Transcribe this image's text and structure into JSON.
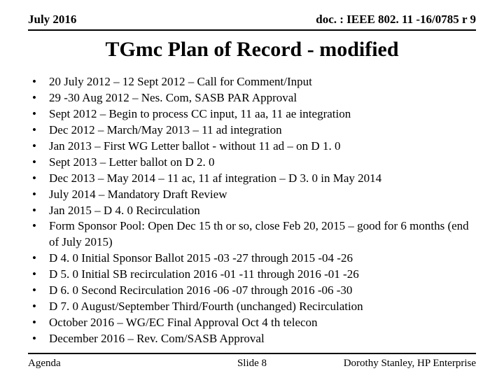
{
  "colors": {
    "background": "#ffffff",
    "text": "#000000",
    "rule": "#000000"
  },
  "typography": {
    "family": "Times New Roman",
    "header_fontsize_pt": 13,
    "title_fontsize_pt": 22,
    "body_fontsize_pt": 13,
    "footer_fontsize_pt": 11,
    "header_weight": "bold",
    "title_weight": "bold",
    "body_weight": "normal"
  },
  "header": {
    "left": "July 2016",
    "right": "doc. : IEEE 802. 11 -16/0785 r 9"
  },
  "title": "TGmc Plan of Record - modified",
  "items": [
    "20 July 2012 – 12 Sept 2012 – Call for Comment/Input",
    "29 -30 Aug 2012 – Nes. Com, SASB PAR Approval",
    "Sept 2012 – Begin to process CC input, 11 aa, 11 ae integration",
    "Dec 2012 – March/May 2013 – 11 ad integration",
    "Jan 2013 – First WG Letter ballot  - without 11 ad – on D 1. 0",
    "Sept 2013 – Letter ballot on D 2. 0",
    "Dec 2013 – May 2014 – 11 ac, 11 af integration – D 3. 0 in May 2014",
    "July 2014 – Mandatory Draft Review",
    "Jan 2015 – D 4. 0 Recirculation",
    "Form Sponsor Pool:  Open Dec 15 th or so, close Feb 20, 2015 – good for 6 months (end of July 2015)",
    "D 4. 0 Initial Sponsor Ballot 2015 -03 -27 through 2015 -04 -26",
    "D 5. 0 Initial SB recirculation 2016 -01 -11 through 2016 -01 -26",
    "D 6. 0 Second Recirculation 2016 -06 -07 through 2016 -06 -30",
    "D 7. 0 August/September Third/Fourth (unchanged) Recirculation",
    "October 2016 – WG/EC Final Approval Oct 4 th telecon",
    "December  2016 – Rev. Com/SASB Approval"
  ],
  "footer": {
    "left": "Agenda",
    "center": "Slide 8",
    "right": "Dorothy Stanley, HP Enterprise"
  }
}
